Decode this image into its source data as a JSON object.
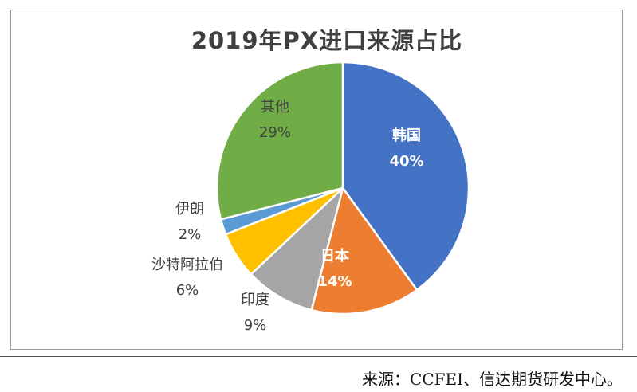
{
  "chart_data": {
    "type": "pie",
    "title": "2019年PX进口来源占比",
    "categories": [
      "韩国",
      "日本",
      "印度",
      "沙特阿拉伯",
      "伊朗",
      "其他"
    ],
    "values": [
      40,
      14,
      9,
      6,
      2,
      29
    ],
    "labels": [
      "40%",
      "14%",
      "9%",
      "6%",
      "2%",
      "29%"
    ],
    "colors": [
      "#4472C4",
      "#ED7D31",
      "#A5A5A5",
      "#FFC000",
      "#5B9BD5",
      "#70AD47"
    ],
    "start": "12 o'clock, clockwise"
  },
  "source": "来源：CCFEI、信达期货研发中心。"
}
